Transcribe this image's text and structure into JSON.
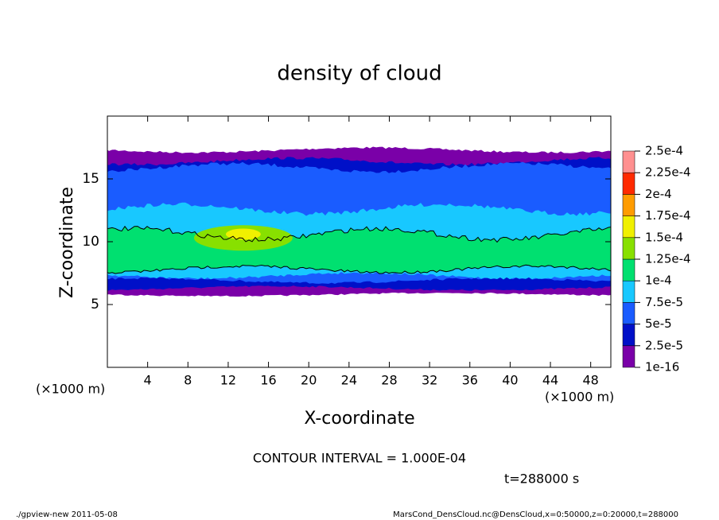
{
  "chart_data": {
    "type": "contour",
    "title": "density of cloud",
    "x_label": "X-coordinate",
    "y_label": "Z-coordinate",
    "x_unit": "(×1000 m)",
    "xlim": [
      0,
      50
    ],
    "xticks": [
      4,
      8,
      12,
      16,
      20,
      24,
      28,
      32,
      36,
      40,
      44,
      48
    ],
    "ylim": [
      0,
      20
    ],
    "yticks": [
      5,
      10,
      15
    ],
    "levels": [
      {
        "value": 1e-16,
        "label": "1e-16"
      },
      {
        "value": 2.5e-05,
        "label": "2.5e-5"
      },
      {
        "value": 5e-05,
        "label": "5e-5"
      },
      {
        "value": 7.5e-05,
        "label": "7.5e-5"
      },
      {
        "value": 0.0001,
        "label": "1e-4"
      },
      {
        "value": 0.000125,
        "label": "1.25e-4"
      },
      {
        "value": 0.00015,
        "label": "1.5e-4"
      },
      {
        "value": 0.000175,
        "label": "1.75e-4"
      },
      {
        "value": 0.0002,
        "label": "2e-4"
      },
      {
        "value": 0.000225,
        "label": "2.25e-4"
      },
      {
        "value": 0.00025,
        "label": "2.5e-4"
      }
    ],
    "colors": [
      "#7a00a8",
      "#0010c8",
      "#1a5cff",
      "#18c8ff",
      "#00e070",
      "#88e000",
      "#f0f000",
      "#ff9c00",
      "#ff2a00",
      "#ff9090"
    ],
    "contour_note": "CONTOUR INTERVAL = 1.000E-04",
    "time_note": "t=288000 s",
    "footer_left": "./gpview-new  2011-05-08",
    "footer_right": "MarsCond_DensCloud.nc@DensCloud,x=0:50000,z=0:20000,t=288000"
  }
}
